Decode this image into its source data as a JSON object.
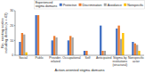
{
  "chart_data": {
    "type": "bar",
    "x_label": "Action-oriented stigma domains",
    "y_label": "No. existing scales\nincluding domain (n = 43)",
    "categories": [
      "Social",
      "Public",
      "Provider-\nrelated",
      "Occupational",
      "Self",
      "Anticipated",
      "Stigma by\ninstitutions\n(structural)",
      "Nonspecific\nactor"
    ],
    "series": [
      {
        "name": "Protective",
        "color": "#4472c4",
        "values": [
          9,
          27,
          10,
          10,
          3,
          20,
          18,
          9
        ]
      },
      {
        "name": "Discrimination",
        "color": "#ed7d31",
        "values": [
          15,
          27,
          13,
          13,
          3,
          3,
          20,
          8
        ]
      },
      {
        "name": "Avoidance",
        "color": "#a5a5a5",
        "values": [
          14,
          0,
          12,
          12,
          0,
          3,
          11,
          7
        ]
      },
      {
        "name": "Nonspecific",
        "color": "#ffc000",
        "values": [
          2,
          0,
          0,
          0,
          0,
          0,
          15,
          3
        ]
      }
    ],
    "legend_title": "Experienced\nstigma domains",
    "legend": "upper right",
    "ylim": [
      0,
      30
    ],
    "yticks": [
      0,
      10,
      20,
      30
    ],
    "grid": false
  }
}
